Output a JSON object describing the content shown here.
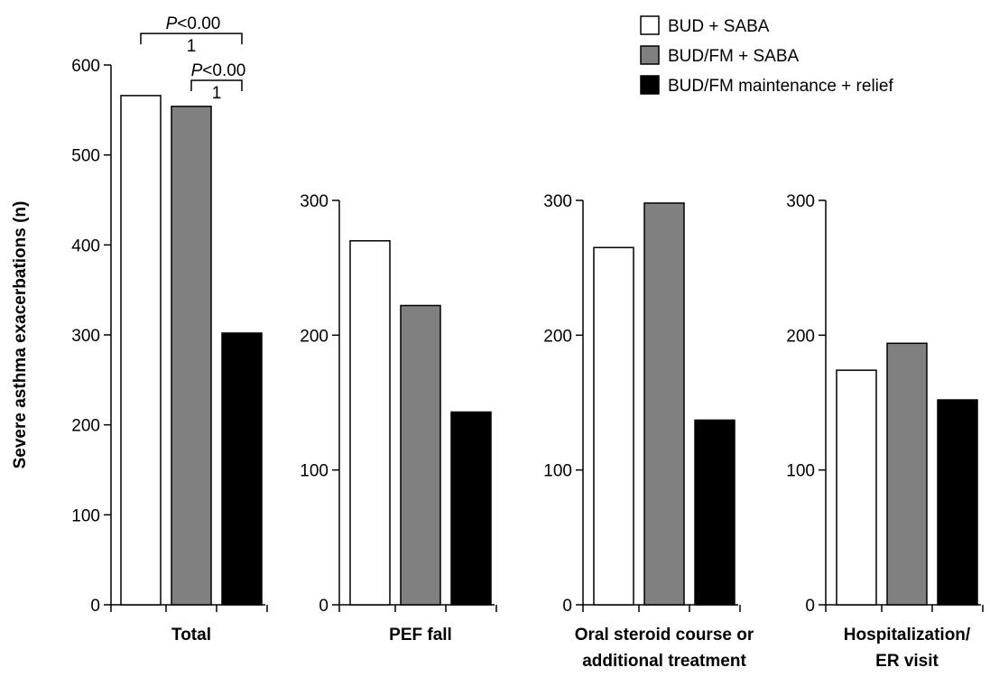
{
  "chart_data": {
    "type": "bar",
    "ylabel": "Severe asthma exacerbations (n)",
    "legend": {
      "position": "top-right",
      "entries": [
        {
          "name": "BUD + SABA",
          "color": "#ffffff"
        },
        {
          "name": "BUD/FM + SABA",
          "color": "#808080"
        },
        {
          "name": "BUD/FM maintenance + relief",
          "color": "#000000"
        }
      ]
    },
    "grid": false,
    "panels": [
      {
        "label_lines": [
          "Total"
        ],
        "ylim": [
          0,
          600
        ],
        "yticks": [
          "0",
          "100",
          "200",
          "300",
          "400",
          "500",
          "600"
        ],
        "values": [
          566,
          554,
          302
        ],
        "annotations": [
          {
            "from": 0,
            "to": 2,
            "text": "P<0.00",
            "text2": "1",
            "y": 635
          },
          {
            "from": 1,
            "to": 2,
            "text": "P<0.00",
            "text2": "1",
            "y": 583
          }
        ]
      },
      {
        "label_lines": [
          "PEF fall"
        ],
        "ylim": [
          0,
          300
        ],
        "yticks": [
          "0",
          "100",
          "200",
          "300"
        ],
        "values": [
          270,
          222,
          143
        ]
      },
      {
        "label_lines": [
          "Oral steroid course or",
          "additional treatment"
        ],
        "ylim": [
          0,
          300
        ],
        "yticks": [
          "0",
          "100",
          "200",
          "300"
        ],
        "values": [
          265,
          298,
          137
        ]
      },
      {
        "label_lines": [
          "Hospitalization/",
          "ER visit"
        ],
        "ylim": [
          0,
          300
        ],
        "yticks": [
          "0",
          "100",
          "200",
          "300"
        ],
        "values": [
          174,
          194,
          152
        ]
      }
    ]
  }
}
